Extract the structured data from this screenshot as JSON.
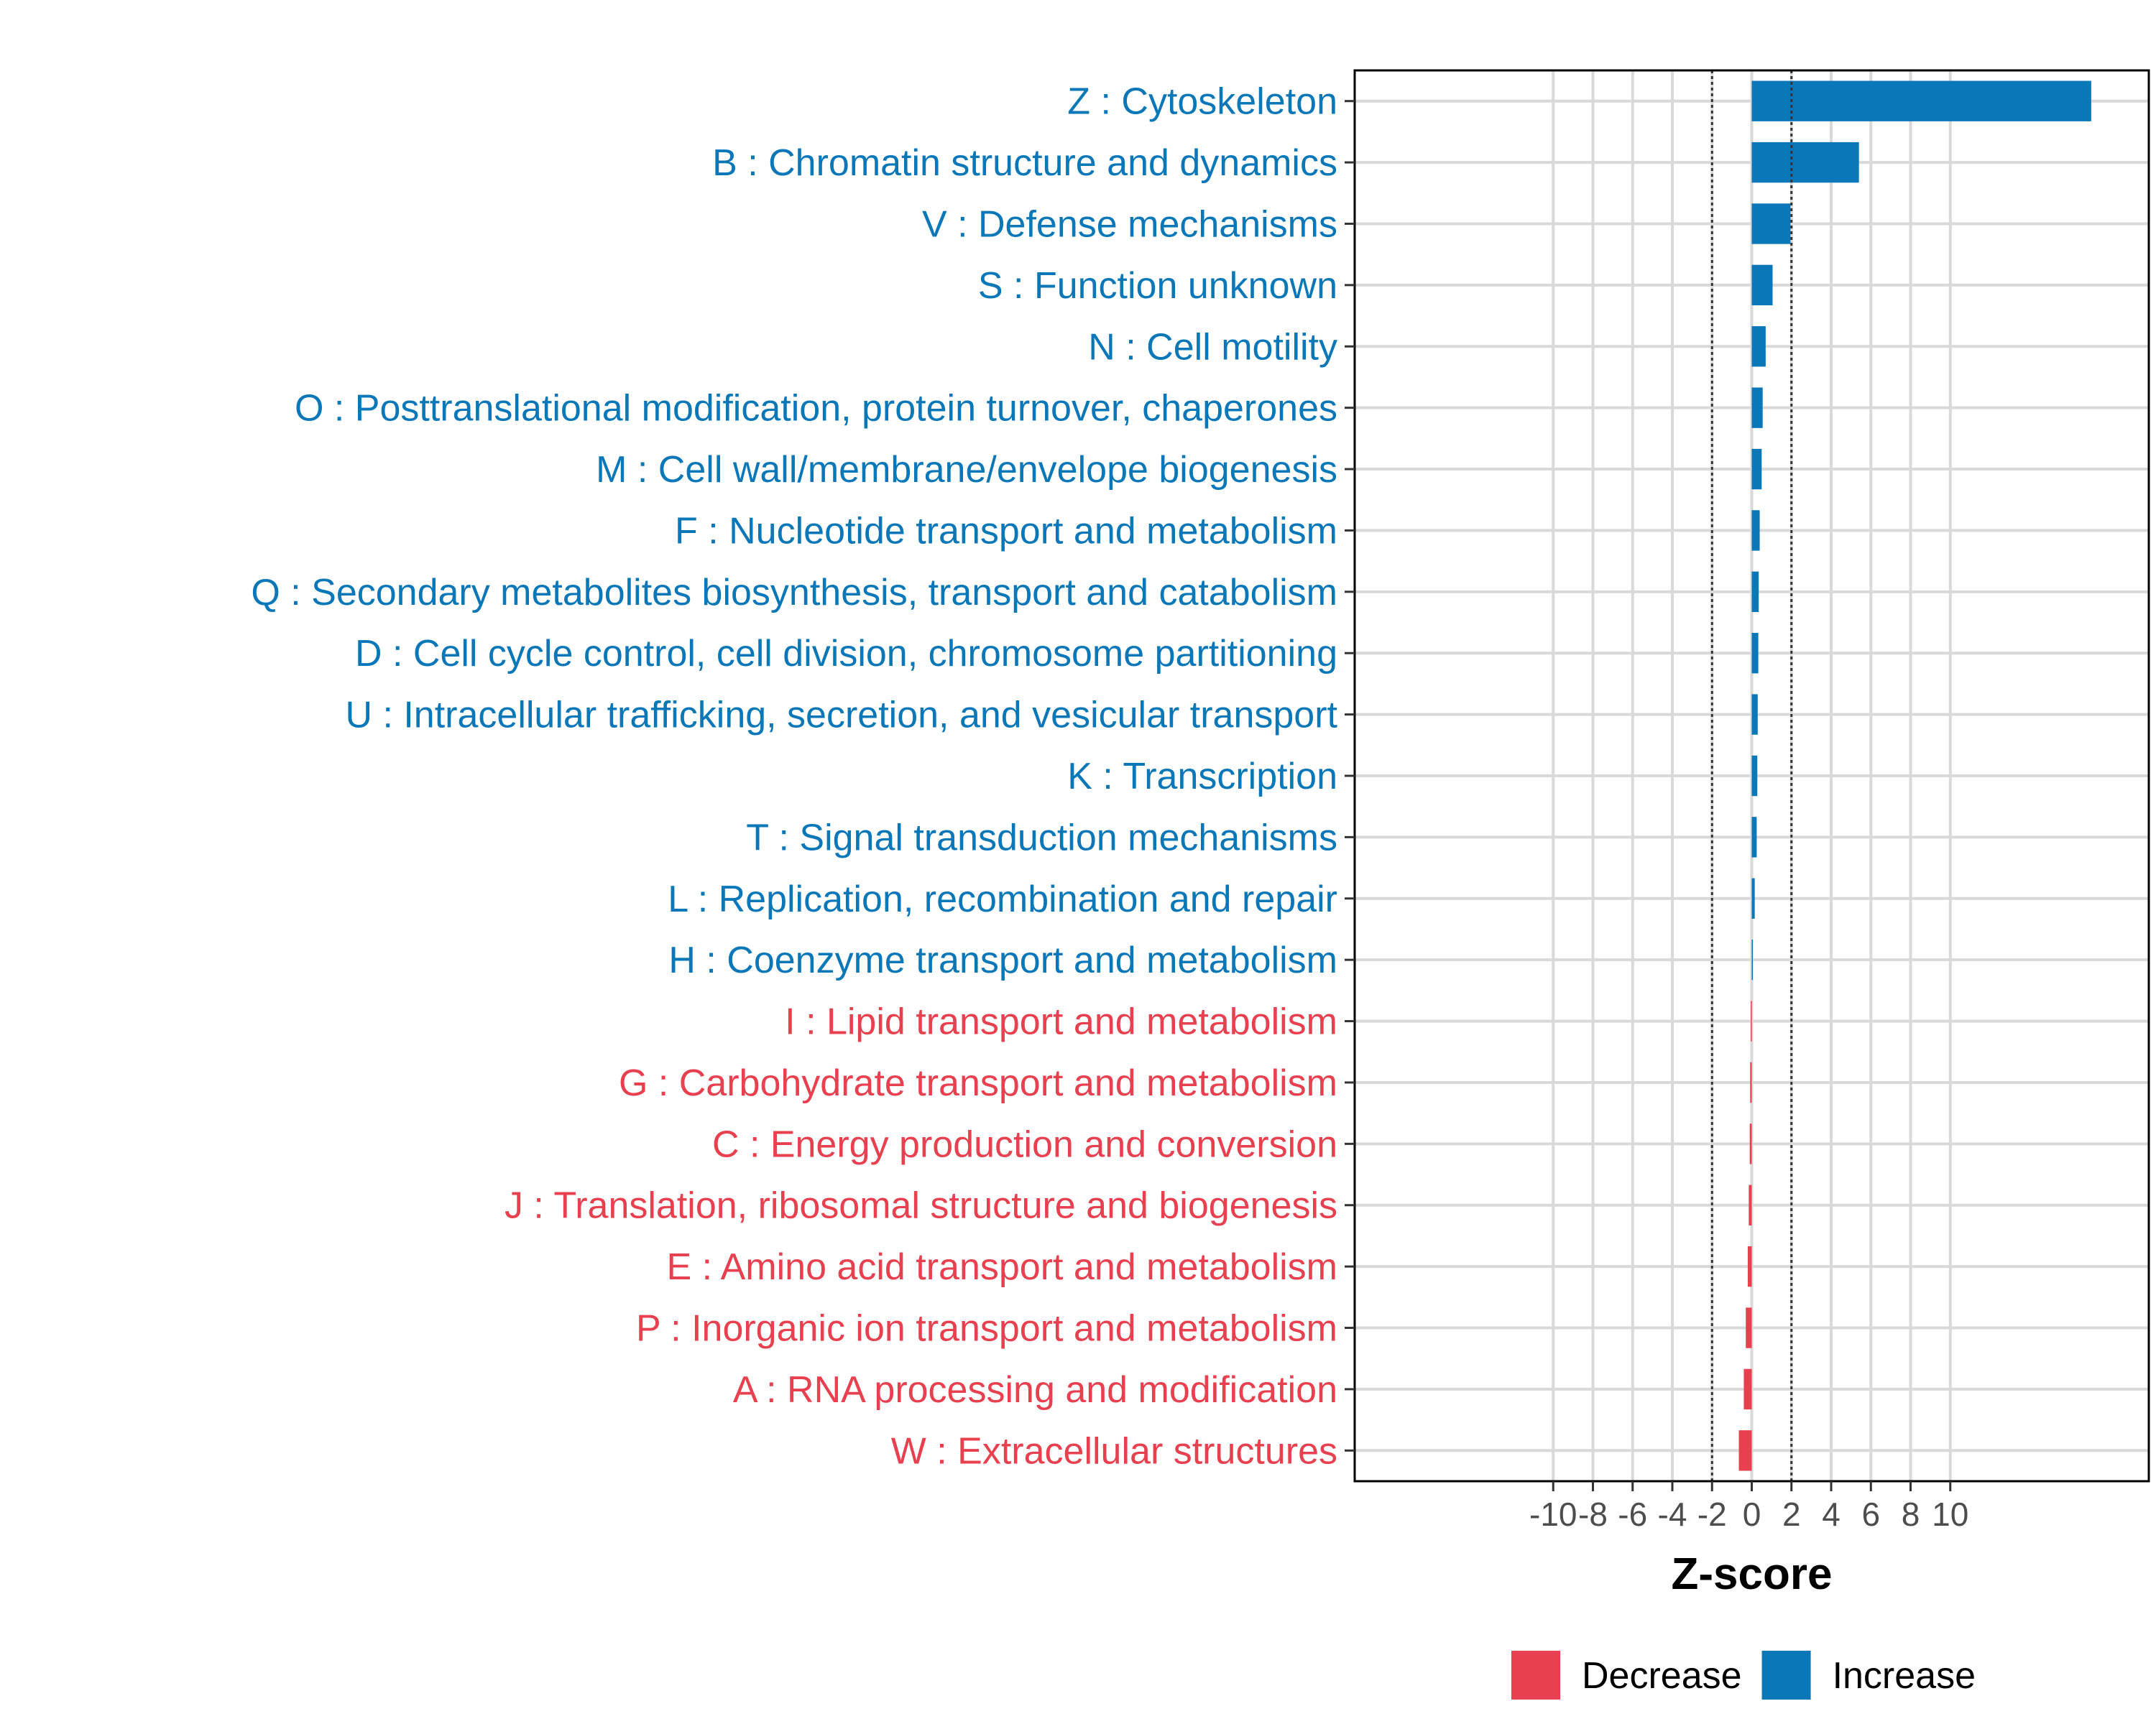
{
  "chart_data": {
    "type": "bar",
    "orientation": "horizontal",
    "title": "",
    "xlabel": "Z-score",
    "ylabel": "",
    "xlim": [
      -20,
      20
    ],
    "xticks": [
      -10,
      -8,
      -6,
      -4,
      -2,
      0,
      2,
      4,
      6,
      8,
      10
    ],
    "xtick_labels": [
      "-10",
      "-8",
      "-6",
      "-4",
      "-2",
      "0",
      "2",
      "4",
      "6",
      "8",
      "10"
    ],
    "reference_lines": [
      -2,
      2
    ],
    "grid": true,
    "legend_position": "bottom",
    "colors": {
      "Decrease": "#E8404F",
      "Increase": "#0A77B8"
    },
    "categories": [
      "Z : Cytoskeleton",
      "B : Chromatin structure and dynamics",
      "V : Defense mechanisms",
      "S : Function unknown",
      "N : Cell motility",
      "O : Posttranslational modification, protein turnover, chaperones",
      "M : Cell wall/membrane/envelope biogenesis",
      "F : Nucleotide transport and metabolism",
      "Q : Secondary metabolites biosynthesis, transport and catabolism",
      "D : Cell cycle control, cell division, chromosome partitioning",
      "U : Intracellular trafficking, secretion, and vesicular transport",
      "K : Transcription",
      "T : Signal transduction mechanisms",
      "L : Replication, recombination and repair",
      "H : Coenzyme transport and metabolism",
      "I : Lipid transport and metabolism",
      "G : Carbohydrate transport and metabolism",
      "C : Energy production and conversion",
      "J : Translation, ribosomal structure and biogenesis",
      "E : Amino acid transport and metabolism",
      "P : Inorganic ion transport and metabolism",
      "A : RNA processing and modification",
      "W : Extracellular structures"
    ],
    "values": [
      17.1,
      5.4,
      1.95,
      1.05,
      0.7,
      0.55,
      0.5,
      0.4,
      0.35,
      0.33,
      0.3,
      0.28,
      0.25,
      0.15,
      0.05,
      -0.05,
      -0.08,
      -0.1,
      -0.15,
      -0.2,
      -0.3,
      -0.4,
      -0.65
    ],
    "groups": [
      "Increase",
      "Increase",
      "Increase",
      "Increase",
      "Increase",
      "Increase",
      "Increase",
      "Increase",
      "Increase",
      "Increase",
      "Increase",
      "Increase",
      "Increase",
      "Increase",
      "Increase",
      "Decrease",
      "Decrease",
      "Decrease",
      "Decrease",
      "Decrease",
      "Decrease",
      "Decrease",
      "Decrease"
    ],
    "legend": [
      {
        "label": "Decrease"
      },
      {
        "label": "Increase"
      }
    ]
  }
}
